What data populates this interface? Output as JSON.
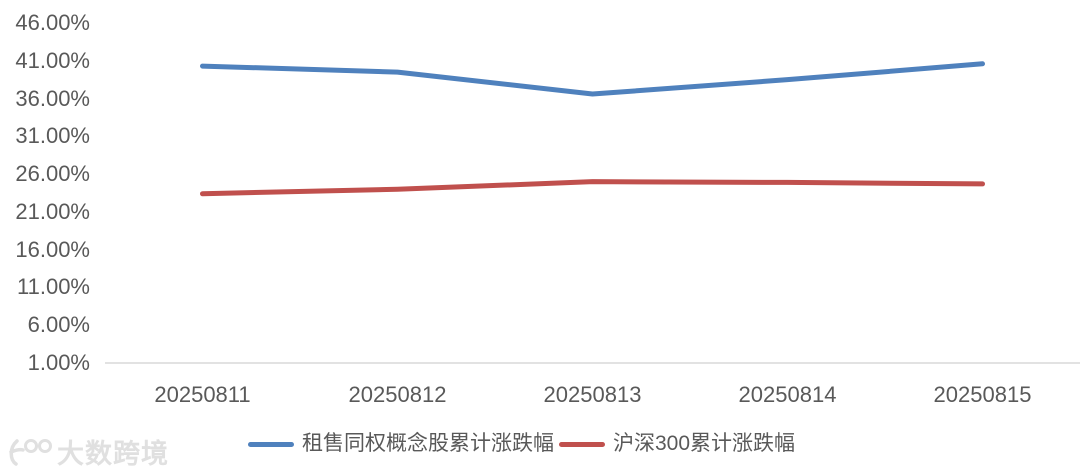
{
  "chart_data": {
    "type": "line",
    "title": "",
    "xlabel": "",
    "ylabel": "",
    "grid": false,
    "legend_position": "bottom",
    "categories": [
      "20250811",
      "20250812",
      "20250813",
      "20250814",
      "20250815"
    ],
    "series": [
      {
        "name": "租售同权概念股累计涨跌幅",
        "color": "#4F81BD",
        "values": [
          40.3,
          39.5,
          36.6,
          38.5,
          40.6
        ]
      },
      {
        "name": "沪深300累计涨跌幅",
        "color": "#C0504D",
        "values": [
          23.4,
          24.0,
          25.0,
          24.9,
          24.7
        ]
      }
    ],
    "y_ticks": [
      "46.00%",
      "41.00%",
      "36.00%",
      "31.00%",
      "26.00%",
      "21.00%",
      "16.00%",
      "11.00%",
      "6.00%",
      "1.00%"
    ],
    "y_tick_values": [
      46,
      41,
      36,
      31,
      26,
      21,
      16,
      11,
      6,
      1
    ],
    "ylim": [
      1,
      46
    ]
  },
  "watermark": {
    "text": "大数跨境"
  },
  "colors": {
    "background": "#FFFFFF",
    "axis_line": "#D9D9D9",
    "tick_label": "#595959",
    "legend_label": "#595959",
    "watermark": "#E0E0E0"
  }
}
